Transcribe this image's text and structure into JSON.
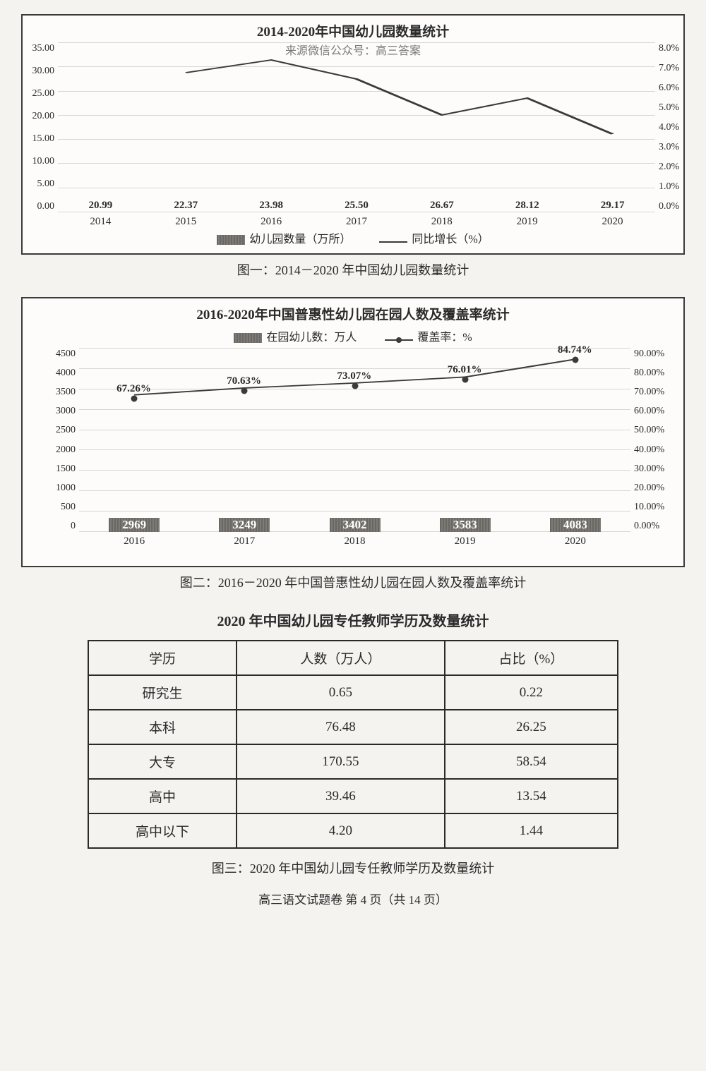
{
  "chart1": {
    "title": "2014-2020年中国幼儿园数量统计",
    "sourceOverlay": "来源微信公众号：高三答案",
    "categories": [
      "2014",
      "2015",
      "2016",
      "2017",
      "2018",
      "2019",
      "2020"
    ],
    "bar_values": [
      20.99,
      22.37,
      23.98,
      25.5,
      26.67,
      28.12,
      29.17
    ],
    "bar_value_labels": [
      "20.99",
      "22.37",
      "23.98",
      "25.50",
      "26.67",
      "28.12",
      "29.17"
    ],
    "line_values_pct": [
      null,
      6.6,
      7.2,
      6.3,
      4.6,
      5.4,
      3.7
    ],
    "y_left": {
      "min": 0,
      "max": 35,
      "step": 5,
      "labels": [
        "0.00",
        "5.00",
        "10.00",
        "15.00",
        "20.00",
        "25.00",
        "30.00",
        "35.00"
      ]
    },
    "y_right": {
      "min": 0,
      "max": 8,
      "step": 1,
      "labels": [
        "0.0%",
        "1.0%",
        "2.0%",
        "3.0%",
        "4.0%",
        "5.0%",
        "6.0%",
        "7.0%",
        "8.0%"
      ]
    },
    "legend_bar": "幼儿园数量（万所）",
    "legend_line": "同比增长（%）",
    "bar_color": "#6f6b67",
    "line_color": "#3a3a3a",
    "caption": "图一：2014－2020 年中国幼儿园数量统计"
  },
  "chart2": {
    "title": "2016-2020年中国普惠性幼儿园在园人数及覆盖率统计",
    "legend_bar": "在园幼儿数：万人",
    "legend_line": "覆盖率：%",
    "categories": [
      "2016",
      "2017",
      "2018",
      "2019",
      "2020"
    ],
    "bar_values": [
      2969,
      3249,
      3402,
      3583,
      4083
    ],
    "bar_value_labels": [
      "2969",
      "3249",
      "3402",
      "3583",
      "4083"
    ],
    "line_values_pct": [
      67.26,
      70.63,
      73.07,
      76.01,
      84.74
    ],
    "line_value_labels": [
      "67.26%",
      "70.63%",
      "73.07%",
      "76.01%",
      "84.74%"
    ],
    "y_left": {
      "min": 0,
      "max": 4500,
      "step": 500,
      "labels": [
        "0",
        "500",
        "1000",
        "1500",
        "2000",
        "2500",
        "3000",
        "3500",
        "4000",
        "4500"
      ]
    },
    "y_right": {
      "min": 0,
      "max": 90,
      "step": 10,
      "labels": [
        "0.00%",
        "10.00%",
        "20.00%",
        "30.00%",
        "40.00%",
        "50.00%",
        "60.00%",
        "70.00%",
        "80.00%",
        "90.00%"
      ]
    },
    "bar_color": "#6f6b67",
    "line_color": "#3a3a3a",
    "caption": "图二：2016－2020 年中国普惠性幼儿园在园人数及覆盖率统计"
  },
  "table3": {
    "heading": "2020 年中国幼儿园专任教师学历及数量统计",
    "columns": [
      "学历",
      "人数（万人）",
      "占比（%）"
    ],
    "rows": [
      [
        "研究生",
        "0.65",
        "0.22"
      ],
      [
        "本科",
        "76.48",
        "26.25"
      ],
      [
        "大专",
        "170.55",
        "58.54"
      ],
      [
        "高中",
        "39.46",
        "13.54"
      ],
      [
        "高中以下",
        "4.20",
        "1.44"
      ]
    ],
    "caption": "图三：2020 年中国幼儿园专任教师学历及数量统计"
  },
  "pageFooter": "高三语文试题卷 第 4 页（共 14 页）"
}
